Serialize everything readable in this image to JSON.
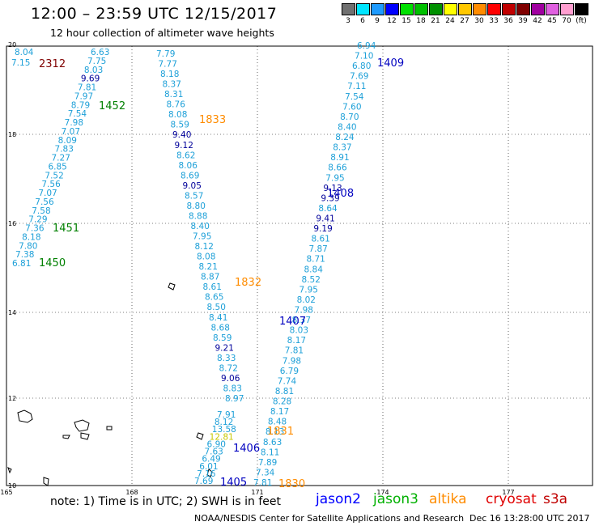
{
  "header": {
    "title": "12:00 – 23:59 UTC 12/15/2017",
    "subtitle": "12 hour collection of altimeter wave heights"
  },
  "scale": {
    "labels": [
      "3",
      "6",
      "9",
      "12",
      "15",
      "18",
      "21",
      "24",
      "27",
      "30",
      "33",
      "36",
      "39",
      "42",
      "45",
      "70",
      "(ft)"
    ],
    "colors": [
      "#707070",
      "#00e5ff",
      "#1e9bff",
      "#0000ff",
      "#00e000",
      "#00c000",
      "#009000",
      "#ffff00",
      "#ffc800",
      "#ff8c00",
      "#ff0000",
      "#c00000",
      "#800000",
      "#a000a0",
      "#e060e0",
      "#ff9ed0",
      "#000000"
    ]
  },
  "axes": {
    "x_labels": [
      "165",
      "168",
      "171",
      "174",
      "177"
    ],
    "y_labels": [
      "20",
      "18",
      "16",
      "14",
      "12",
      "10"
    ]
  },
  "passes": [
    {
      "id": "2312",
      "color": "#800000"
    },
    {
      "id": "1452",
      "color": "#008000"
    },
    {
      "id": "1451",
      "color": "#008000"
    },
    {
      "id": "1450",
      "color": "#008000"
    },
    {
      "id": "1833",
      "color": "#ff8c00"
    },
    {
      "id": "1832",
      "color": "#ff8c00"
    },
    {
      "id": "1831",
      "color": "#ff8c00"
    },
    {
      "id": "1830",
      "color": "#ff8c00"
    },
    {
      "id": "1409",
      "color": "#0000c0"
    },
    {
      "id": "1408",
      "color": "#0000c0"
    },
    {
      "id": "1407",
      "color": "#0000c0"
    },
    {
      "id": "1406",
      "color": "#0000c0"
    },
    {
      "id": "1405",
      "color": "#0000c0"
    }
  ],
  "tracks": {
    "left_top": [
      "8.04",
      "7.15"
    ],
    "left": [
      "6.63",
      "7.75",
      "8.03",
      "9.69",
      "7.81",
      "7.97",
      "8.79",
      "7.54",
      "7.98",
      "7.07",
      "8.09",
      "7.83",
      "7.27",
      "6.85",
      "7.52",
      "7.56",
      "7.07",
      "7.56",
      "7.58",
      "7.29",
      "7.36",
      "8.18",
      "7.80",
      "7.38",
      "6.81"
    ],
    "middle": [
      "7.79",
      "7.77",
      "8.18",
      "8.37",
      "8.31",
      "8.76",
      "8.08",
      "8.59",
      "9.40",
      "9.12",
      "8.62",
      "8.06",
      "8.69",
      "9.05",
      "8.57",
      "8.80",
      "8.88",
      "8.40",
      "7.95",
      "8.12",
      "8.08",
      "8.21",
      "8.87",
      "8.61",
      "8.65",
      "8.50",
      "8.41",
      "8.68",
      "8.59",
      "9.21",
      "8.33",
      "8.72",
      "9.06",
      "8.83",
      "8.97"
    ],
    "right": [
      "6.94",
      "7.10",
      "6.80",
      "7.69",
      "7.11",
      "7.54",
      "7.60",
      "8.70",
      "8.40",
      "8.24",
      "8.37",
      "8.91",
      "8.66",
      "7.95",
      "9.13",
      "9.39",
      "8.64",
      "9.41",
      "9.19",
      "8.61",
      "7.87",
      "8.71",
      "8.84",
      "8.52",
      "7.95",
      "8.02",
      "7.98",
      "8.37",
      "8.03",
      "8.17",
      "7.81",
      "7.98",
      "6.79",
      "7.74",
      "8.81",
      "8.28",
      "8.17",
      "8.48",
      "8.13",
      "8.63",
      "8.11",
      "7.89",
      "7.34",
      "7.81"
    ],
    "bottom": [
      "7.91",
      "8.12",
      "13.58",
      "12.81",
      "6.90",
      "7.63",
      "6.49",
      "6.01",
      "7.16",
      "7.69"
    ]
  },
  "footer": {
    "note": "note: 1) Time is in UTC; 2) SWH is in feet",
    "credit": "NOAA/NESDIS Center for Satellite Applications and Research",
    "date": "Dec 16 13:28:00 UTC 2017"
  },
  "satellites": [
    {
      "name": "jason2",
      "color": "#0000ff"
    },
    {
      "name": "jason3",
      "color": "#00b000"
    },
    {
      "name": "altika",
      "color": "#ff8c00"
    },
    {
      "name": "cryosat",
      "color": "#e00000"
    },
    {
      "name": "s3a",
      "color": "#c00000"
    }
  ]
}
